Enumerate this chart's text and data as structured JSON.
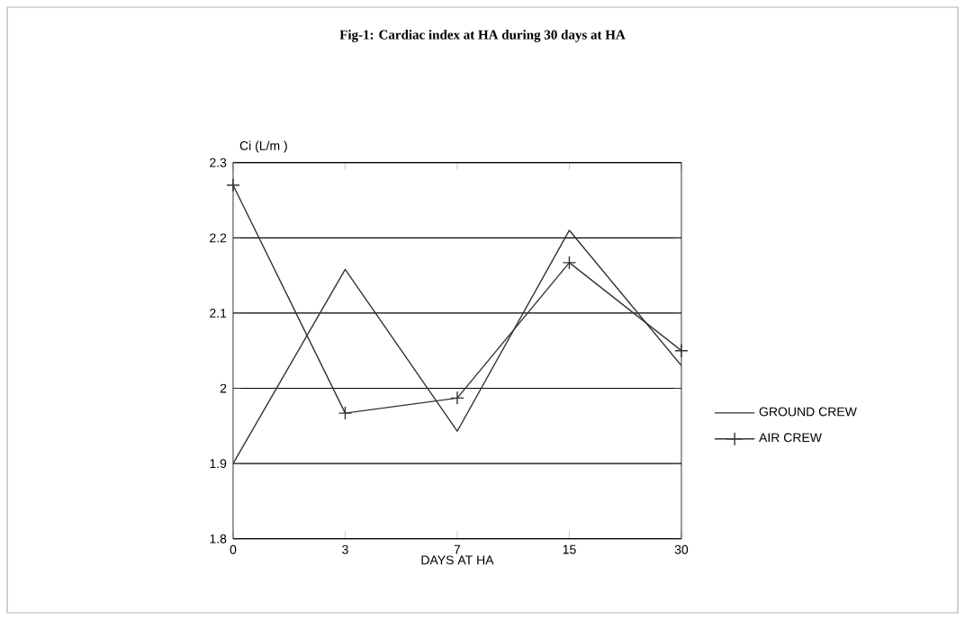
{
  "chart_data": {
    "type": "line",
    "title": "Fig-1: Cardiac index at HA during 30 days at HA",
    "xlabel": "DAYS AT HA",
    "ylabel": "Ci (L/m )",
    "categories": [
      "0",
      "3",
      "7",
      "15",
      "30"
    ],
    "series": [
      {
        "name": "GROUND CREW",
        "color": "#333333",
        "marker": "none",
        "values": [
          1.9,
          2.158,
          1.943,
          2.21,
          2.03
        ]
      },
      {
        "name": "AIR CREW",
        "color": "#333333",
        "marker": "cross",
        "values": [
          2.27,
          1.967,
          1.987,
          2.167,
          2.05
        ]
      }
    ],
    "ylim": [
      1.8,
      2.3
    ],
    "yticks": [
      1.8,
      1.9,
      2,
      2.1,
      2.2,
      2.3
    ],
    "grid": "y",
    "legend": "right"
  }
}
